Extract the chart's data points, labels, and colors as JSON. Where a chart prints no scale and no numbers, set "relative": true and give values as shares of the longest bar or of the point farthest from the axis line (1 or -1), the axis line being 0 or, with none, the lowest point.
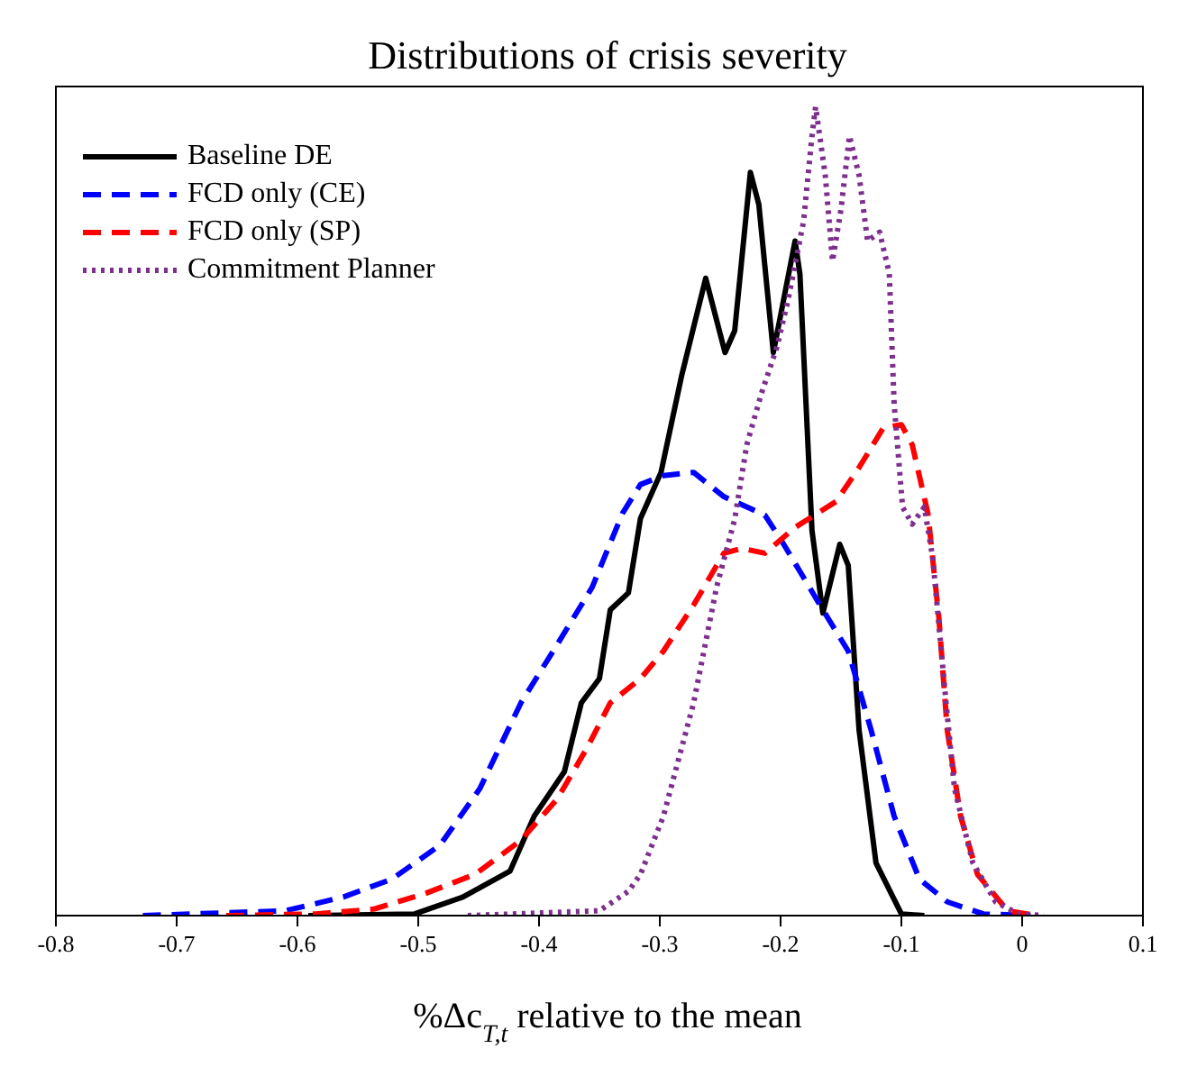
{
  "chart_data": {
    "type": "line",
    "title": "Distributions of crisis severity",
    "xlabel": "%Δc$_{T,t}$ relative to the mean",
    "relative": true,
    "xlim": [
      -0.8,
      0.1
    ],
    "xticks": [
      -0.8,
      -0.7,
      -0.6,
      -0.5,
      -0.4,
      -0.3,
      -0.2,
      -0.1,
      0,
      0.1
    ],
    "legend": "top left",
    "grid": false,
    "marker": "none",
    "series": [
      {
        "name": "Baseline DE",
        "color": "#000000",
        "line_style": "solid",
        "x": [
          -0.591,
          -0.503,
          -0.463,
          -0.424,
          -0.404,
          -0.379,
          -0.365,
          -0.35,
          -0.341,
          -0.326,
          -0.316,
          -0.299,
          -0.282,
          -0.262,
          -0.246,
          -0.238,
          -0.225,
          -0.218,
          -0.206,
          -0.188,
          -0.184,
          -0.174,
          -0.165,
          -0.151,
          -0.144,
          -0.135,
          -0.121,
          -0.1,
          -0.081
        ],
        "values": [
          0,
          0.002,
          0.023,
          0.055,
          0.123,
          0.178,
          0.263,
          0.293,
          0.378,
          0.399,
          0.491,
          0.548,
          0.667,
          0.788,
          0.696,
          0.723,
          0.919,
          0.879,
          0.696,
          0.834,
          0.793,
          0.476,
          0.374,
          0.459,
          0.433,
          0.229,
          0.065,
          0.002,
          0
        ]
      },
      {
        "name": "FCD only (CE)",
        "color": "#0000ff",
        "line_style": "dashed",
        "x": [
          -0.728,
          -0.61,
          -0.562,
          -0.522,
          -0.482,
          -0.449,
          -0.415,
          -0.385,
          -0.356,
          -0.331,
          -0.316,
          -0.297,
          -0.272,
          -0.247,
          -0.213,
          -0.199,
          -0.165,
          -0.144,
          -0.125,
          -0.106,
          -0.085,
          -0.062,
          -0.032,
          0.007
        ],
        "values": [
          0,
          0.006,
          0.023,
          0.045,
          0.087,
          0.157,
          0.263,
          0.335,
          0.406,
          0.497,
          0.533,
          0.544,
          0.548,
          0.518,
          0.495,
          0.463,
          0.378,
          0.327,
          0.229,
          0.123,
          0.045,
          0.017,
          0.002,
          0
        ]
      },
      {
        "name": "FCD only (SP)",
        "color": "#ff0000",
        "line_style": "dashed",
        "x": [
          -0.659,
          -0.585,
          -0.537,
          -0.493,
          -0.453,
          -0.415,
          -0.385,
          -0.36,
          -0.341,
          -0.316,
          -0.297,
          -0.272,
          -0.247,
          -0.232,
          -0.213,
          -0.188,
          -0.154,
          -0.135,
          -0.115,
          -0.1,
          -0.091,
          -0.078,
          -0.069,
          -0.062,
          -0.051,
          -0.037,
          -0.012,
          0.012
        ],
        "values": [
          0,
          0.002,
          0.008,
          0.028,
          0.051,
          0.093,
          0.144,
          0.208,
          0.263,
          0.293,
          0.327,
          0.384,
          0.448,
          0.454,
          0.448,
          0.48,
          0.512,
          0.554,
          0.603,
          0.607,
          0.582,
          0.497,
          0.369,
          0.229,
          0.123,
          0.051,
          0.006,
          0
        ]
      },
      {
        "name": "Commitment Planner",
        "color": "#7e2f8e",
        "line_style": "dotted",
        "x": [
          -0.459,
          -0.35,
          -0.326,
          -0.316,
          -0.297,
          -0.272,
          -0.253,
          -0.238,
          -0.228,
          -0.216,
          -0.203,
          -0.194,
          -0.181,
          -0.174,
          -0.171,
          -0.163,
          -0.157,
          -0.15,
          -0.143,
          -0.135,
          -0.128,
          -0.118,
          -0.11,
          -0.106,
          -0.099,
          -0.091,
          -0.081,
          -0.074,
          -0.063,
          -0.056,
          -0.041,
          -0.022,
          -0.003,
          0.018
        ],
        "values": [
          0,
          0.006,
          0.03,
          0.051,
          0.123,
          0.263,
          0.406,
          0.49,
          0.582,
          0.645,
          0.703,
          0.76,
          0.858,
          0.964,
          1,
          0.915,
          0.809,
          0.873,
          0.964,
          0.915,
          0.834,
          0.845,
          0.794,
          0.633,
          0.505,
          0.484,
          0.505,
          0.442,
          0.263,
          0.157,
          0.066,
          0.017,
          0.002,
          0
        ]
      }
    ]
  }
}
